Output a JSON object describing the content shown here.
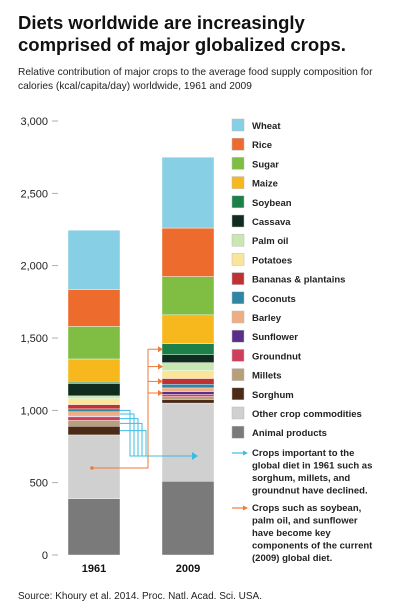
{
  "title": "Diets worldwide are increasingly comprised of major globalized crops.",
  "subtitle": "Relative contribution of major crops to the average food supply composition for calories (kcal/capita/day) worldwide, 1961 and 2009",
  "source": "Source: Khoury et al. 2014. Proc. Natl. Acad. Sci. USA.",
  "colors": {
    "Wheat": "#86cfe4",
    "Rice": "#ee6b2e",
    "Sugar": "#7fbe43",
    "Maize": "#f6b81d",
    "Soybean": "#1c8048",
    "Cassava": "#0f2c1e",
    "Palm oil": "#c9e8b1",
    "Potatoes": "#fbe59b",
    "Bananas & plantains": "#c03134",
    "Coconuts": "#2f86a4",
    "Barley": "#eeae83",
    "Sunflower": "#5a2f8a",
    "Groundnut": "#cf3e5d",
    "Millets": "#b7a079",
    "Sorghum": "#4b2a18",
    "Other crop commodities": "#d0d0d0",
    "Animal products": "#7a7a7a"
  },
  "notes": [
    {
      "lines": [
        "Crops important to the",
        "global diet in 1961 such as",
        "sorghum, millets, and",
        "groundnut have declined."
      ],
      "color": "#3bbde3"
    },
    {
      "lines": [
        "Crops such as soybean,",
        "palm oil, and sunflower",
        "have become key",
        "components of the current",
        "(2009) global diet."
      ],
      "color": "#ef7a3a"
    }
  ],
  "chart_data": {
    "type": "bar",
    "stacked": true,
    "categories": [
      "1961",
      "2009"
    ],
    "ylim": [
      0,
      3000
    ],
    "yticks": [
      "0",
      "500",
      "1,000",
      "1,500",
      "2,000",
      "2,500",
      "3,000"
    ],
    "legend_position": "right",
    "series": [
      {
        "name": "Animal products",
        "values": [
          390,
          510
        ]
      },
      {
        "name": "Other crop commodities",
        "values": [
          440,
          540
        ]
      },
      {
        "name": "Sorghum",
        "values": [
          60,
          25
        ]
      },
      {
        "name": "Millets",
        "values": [
          40,
          20
        ]
      },
      {
        "name": "Groundnut",
        "values": [
          25,
          15
        ]
      },
      {
        "name": "Sunflower",
        "values": [
          5,
          20
        ]
      },
      {
        "name": "Barley",
        "values": [
          30,
          25
        ]
      },
      {
        "name": "Coconuts",
        "values": [
          20,
          25
        ]
      },
      {
        "name": "Bananas & plantains",
        "values": [
          30,
          40
        ]
      },
      {
        "name": "Potatoes",
        "values": [
          40,
          55
        ]
      },
      {
        "name": "Palm oil",
        "values": [
          20,
          55
        ]
      },
      {
        "name": "Cassava",
        "values": [
          85,
          55
        ]
      },
      {
        "name": "Soybean",
        "values": [
          10,
          75
        ]
      },
      {
        "name": "Maize",
        "values": [
          160,
          200
        ]
      },
      {
        "name": "Sugar",
        "values": [
          225,
          265
        ]
      },
      {
        "name": "Rice",
        "values": [
          255,
          335
        ]
      },
      {
        "name": "Wheat",
        "values": [
          410,
          490
        ]
      }
    ]
  }
}
